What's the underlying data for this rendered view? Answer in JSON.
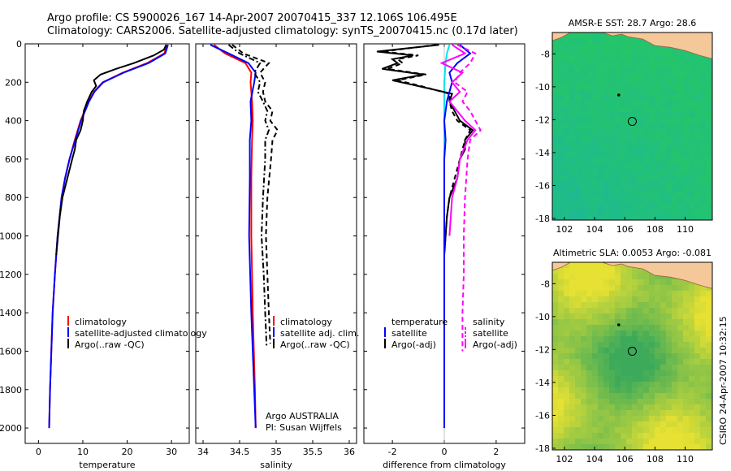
{
  "header": {
    "line1": "Argo profile: CS 5900026_167 14-Apr-2007 20070415_337 12.106S 106.495E",
    "line2": "Climatology: CARS2006. Satellite-adjusted climatology: synTS_20070415.nc (0.17d later)"
  },
  "side_label": "CSIRO 24-Apr-2007 10:32:15",
  "colors": {
    "climatology": "#ff0000",
    "satellite": "#0000ff",
    "argo": "#000000",
    "temp_diff_satellite": "#00e5ee",
    "salinity_diff": "#ff00ff"
  },
  "chart_data": [
    {
      "type": "line",
      "name": "temperature",
      "xlabel": "temperature",
      "ylabel": "",
      "xlim": [
        -3,
        34
      ],
      "ylim": [
        2080,
        0
      ],
      "xticks": [
        0,
        10,
        20,
        30
      ],
      "yticks": [
        0,
        200,
        400,
        600,
        800,
        1000,
        1200,
        1400,
        1600,
        1800,
        2000
      ],
      "legend": [
        "climatology",
        "satellite-adjusted climatology",
        "Argo(..raw -QC)"
      ],
      "series": [
        {
          "name": "climatology",
          "style": "solid",
          "depth": [
            5,
            50,
            100,
            150,
            200,
            250,
            300,
            400,
            500,
            600,
            700,
            800,
            1000,
            1200,
            1400,
            1600,
            1800,
            2000
          ],
          "values": [
            29.0,
            28.4,
            24.5,
            19.0,
            14.5,
            12.5,
            11.3,
            9.5,
            8.2,
            7.0,
            6.0,
            5.2,
            4.3,
            3.7,
            3.2,
            2.9,
            2.6,
            2.4
          ]
        },
        {
          "name": "satellite-adjusted climatology",
          "style": "solid",
          "depth": [
            5,
            50,
            100,
            150,
            200,
            250,
            300,
            400,
            500,
            600,
            700,
            800,
            1000,
            1200,
            1400,
            1600,
            1800,
            2000
          ],
          "values": [
            29.2,
            28.6,
            24.8,
            19.2,
            14.6,
            12.6,
            11.4,
            9.6,
            8.3,
            7.0,
            6.0,
            5.2,
            4.3,
            3.7,
            3.2,
            2.9,
            2.6,
            2.4
          ]
        },
        {
          "name": "Argo(..raw -QC)",
          "style": "solid",
          "depth": [
            5,
            30,
            60,
            100,
            130,
            160,
            190,
            220,
            250,
            300,
            350,
            400,
            450,
            500,
            550,
            600,
            700,
            800,
            900,
            1000,
            1100
          ],
          "values": [
            28.8,
            28.3,
            26.0,
            21.5,
            17.5,
            14.0,
            12.5,
            13.0,
            12.0,
            11.0,
            10.2,
            10.0,
            9.5,
            8.5,
            8.2,
            7.6,
            6.5,
            5.4,
            4.8,
            4.4,
            4.0
          ]
        }
      ]
    },
    {
      "type": "line",
      "name": "salinity",
      "xlabel": "salinity",
      "ylabel": "",
      "xlim": [
        33.9,
        36.1
      ],
      "ylim": [
        2080,
        0
      ],
      "xticks": [
        34,
        34.5,
        35,
        35.5,
        36
      ],
      "legend": [
        "climatology",
        "satellite adj. clim.",
        "Argo(..raw -QC)"
      ],
      "annotation": [
        "Argo AUSTRALIA",
        "PI: Susan Wijffels"
      ],
      "series": [
        {
          "name": "climatology",
          "style": "solid",
          "depth": [
            5,
            50,
            100,
            150,
            200,
            300,
            400,
            500,
            700,
            1000,
            1400,
            1800,
            2000
          ],
          "values": [
            34.15,
            34.3,
            34.58,
            34.66,
            34.65,
            34.67,
            34.68,
            34.67,
            34.66,
            34.66,
            34.68,
            34.71,
            34.72
          ]
        },
        {
          "name": "satellite adj. clim.",
          "style": "solid",
          "depth": [
            5,
            50,
            100,
            150,
            200,
            300,
            400,
            500,
            700,
            1000,
            1400,
            1800,
            2000
          ],
          "values": [
            34.1,
            34.35,
            34.62,
            34.72,
            34.7,
            34.65,
            34.66,
            34.64,
            34.64,
            34.63,
            34.66,
            34.7,
            34.72
          ]
        },
        {
          "name": "Argo(..raw -QC)",
          "style": "dashed",
          "depth": [
            5,
            50,
            100,
            150,
            200,
            250,
            300,
            350,
            400,
            450,
            500,
            600,
            800,
            1000,
            1200,
            1400,
            1560
          ],
          "values": [
            34.4,
            34.55,
            34.9,
            34.78,
            34.85,
            34.82,
            34.85,
            34.95,
            34.92,
            35.02,
            34.95,
            34.93,
            34.88,
            34.86,
            34.88,
            34.9,
            34.92
          ]
        },
        {
          "name": "Argo(..raw -QC)",
          "style": "dashdot",
          "depth": [
            5,
            50,
            100,
            150,
            200,
            250,
            300,
            350,
            400,
            450,
            500,
            600,
            800,
            1000,
            1200,
            1400,
            1580
          ],
          "values": [
            34.35,
            34.5,
            34.78,
            34.7,
            34.78,
            34.75,
            34.82,
            34.88,
            34.85,
            34.9,
            34.85,
            34.85,
            34.82,
            34.8,
            34.83,
            34.85,
            34.87
          ]
        }
      ]
    },
    {
      "type": "line",
      "name": "difference",
      "xlabel": "difference from climatology",
      "ylabel": "",
      "xlim": [
        -3.1,
        3.1
      ],
      "ylim": [
        2080,
        0
      ],
      "xticks": [
        -2,
        0,
        2
      ],
      "legend_left": [
        "temperature",
        "satellite",
        "Argo(-adj)"
      ],
      "legend_right": [
        "salinity",
        "satellite",
        "Argo(-adj)"
      ],
      "series": [
        {
          "name": "temperature satellite",
          "style": "solid",
          "depth": [
            5,
            50,
            100,
            200,
            300,
            500,
            800,
            1200,
            1600,
            2000
          ],
          "values": [
            0.2,
            0.1,
            0.05,
            0.0,
            0.0,
            0.0,
            0.0,
            0.0,
            0.0,
            0.0
          ]
        },
        {
          "name": "temperature Argo(-adj)",
          "style": "solid",
          "depth": [
            5,
            40,
            60,
            80,
            100,
            130,
            160,
            190,
            220,
            260,
            300,
            350,
            400,
            450,
            500,
            550,
            600,
            700,
            800,
            900,
            1000,
            1100
          ],
          "values": [
            -0.2,
            -2.6,
            -1.2,
            -2.0,
            -1.8,
            -2.4,
            -0.8,
            -2.0,
            -1.0,
            0.3,
            0.2,
            0.4,
            0.6,
            1.1,
            0.8,
            0.8,
            0.6,
            0.5,
            0.2,
            0.1,
            0.05,
            0.0
          ]
        },
        {
          "name": "temperature Argo(-adj)",
          "style": "dashed",
          "depth": [
            5,
            40,
            60,
            80,
            100,
            130,
            160,
            190,
            220,
            260,
            300,
            350,
            400,
            450,
            500,
            550,
            600,
            700,
            800,
            900,
            1000,
            1100
          ],
          "values": [
            -0.3,
            -2.4,
            -1.0,
            -1.8,
            -1.6,
            -2.2,
            -0.7,
            -1.8,
            -0.9,
            0.2,
            0.2,
            0.3,
            0.5,
            1.0,
            0.8,
            0.7,
            0.6,
            0.4,
            0.2,
            0.1,
            0.05,
            0.0
          ]
        },
        {
          "name": "salinity satellite",
          "style": "solid",
          "depth": [
            5,
            50,
            100,
            150,
            200,
            300,
            400,
            500,
            600,
            800,
            1200,
            1600,
            2000
          ],
          "values": [
            0.6,
            1.0,
            0.5,
            0.2,
            0.3,
            0.1,
            0.0,
            0.05,
            0.0,
            0.0,
            0.0,
            0.0,
            0.0
          ]
        },
        {
          "name": "salinity Argo(-adj)",
          "style": "solid",
          "depth": [
            5,
            50,
            100,
            150,
            200,
            250,
            300,
            400,
            450,
            500,
            600,
            700,
            800,
            1000
          ],
          "values": [
            0.3,
            0.8,
            -0.1,
            0.7,
            0.3,
            0.6,
            0.2,
            0.8,
            1.2,
            0.9,
            0.6,
            0.5,
            0.3,
            0.2
          ]
        },
        {
          "name": "salinity Argo(-adj)",
          "style": "dashed",
          "depth": [
            5,
            50,
            100,
            150,
            200,
            250,
            300,
            350,
            400,
            450,
            500,
            600,
            800,
            1000,
            1200,
            1400,
            1600
          ],
          "values": [
            0.5,
            1.2,
            1.0,
            0.6,
            0.4,
            0.9,
            0.7,
            1.0,
            1.2,
            1.4,
            1.0,
            0.9,
            0.8,
            0.75,
            0.75,
            0.7,
            0.7
          ]
        }
      ]
    },
    {
      "type": "heatmap",
      "name": "sst-map",
      "title": "AMSR-E SST: 28.7 Argo: 28.6",
      "xlim": [
        101.2,
        111.8
      ],
      "ylim": [
        -18.1,
        -6.7
      ],
      "xticks": [
        102,
        104,
        106,
        108,
        110
      ],
      "yticks": [
        -8,
        -10,
        -12,
        -14,
        -16,
        -18
      ],
      "markers": [
        {
          "lon": 106.495,
          "lat": -12.106,
          "symbol": "circle"
        },
        {
          "lon": 105.6,
          "lat": -10.5,
          "symbol": "dot"
        }
      ]
    },
    {
      "type": "heatmap",
      "name": "sla-map",
      "title": "Altimetric SLA: 0.0053 Argo: -0.081",
      "xlim": [
        101.2,
        111.8
      ],
      "ylim": [
        -18.1,
        -6.7
      ],
      "xticks": [
        102,
        104,
        106,
        108,
        110
      ],
      "yticks": [
        -8,
        -10,
        -12,
        -14,
        -16,
        -18
      ],
      "markers": [
        {
          "lon": 106.495,
          "lat": -12.106,
          "symbol": "circle"
        },
        {
          "lon": 105.6,
          "lat": -10.5,
          "symbol": "dot"
        }
      ]
    }
  ]
}
